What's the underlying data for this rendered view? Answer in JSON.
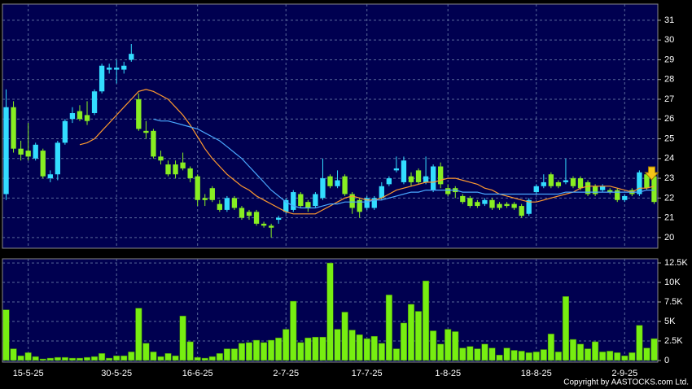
{
  "chart_data": [
    {
      "type": "candlestick",
      "grid": true,
      "up_color": "#33ddff",
      "down_color": "#88ee22",
      "ylim": [
        19.46,
        31.82
      ],
      "yticks": [
        20,
        21,
        22,
        23,
        24,
        25,
        26,
        27,
        28,
        29,
        30,
        31
      ],
      "open": [
        22.2,
        26.6,
        24.5,
        24.4,
        24.0,
        24.4,
        23.0,
        23.2,
        24.8,
        26.0,
        26.4,
        26.2,
        26.3,
        27.4,
        28.5,
        28.5,
        28.5,
        29.0,
        27.0,
        25.4,
        25.4,
        24.1,
        23.7,
        23.7,
        23.8,
        23.5,
        23.1,
        22.0,
        22.5,
        21.7,
        21.4,
        22.0,
        21.5,
        21.3,
        21.3,
        20.7,
        20.6,
        20.9,
        21.3,
        21.4,
        22.2,
        21.8,
        21.6,
        22.0,
        23.1,
        22.6,
        23.1,
        22.2,
        21.9,
        21.5,
        21.5,
        22.0,
        22.7,
        23.4,
        22.8,
        23.1,
        23.4,
        22.8,
        22.4,
        23.6,
        22.5,
        22.5,
        22.1,
        22.0,
        21.8,
        21.7,
        21.9,
        21.7,
        21.7,
        21.7,
        21.6,
        21.2,
        22.3,
        22.6,
        23.2,
        22.8,
        22.8,
        23.0,
        23.0,
        22.8,
        22.6,
        22.4,
        22.4,
        22.4,
        21.9,
        22.4,
        22.2,
        23.2,
        23.1
      ],
      "high": [
        27.5,
        26.9,
        24.9,
        25.8,
        24.8,
        24.5,
        23.4,
        24.9,
        26.0,
        26.6,
        26.7,
        26.9,
        27.5,
        28.8,
        28.8,
        29.0,
        28.9,
        29.8,
        27.3,
        25.9,
        25.5,
        24.4,
        23.9,
        23.9,
        24.3,
        23.6,
        23.2,
        22.2,
        22.6,
        21.9,
        22.1,
        22.1,
        21.6,
        21.4,
        21.4,
        20.8,
        20.7,
        21.1,
        22.0,
        22.4,
        22.3,
        21.9,
        22.3,
        24.0,
        23.2,
        23.4,
        23.2,
        22.3,
        22.0,
        22.1,
        22.1,
        22.8,
        23.1,
        24.1,
        24.1,
        23.3,
        23.5,
        24.1,
        23.7,
        23.8,
        22.7,
        22.6,
        22.2,
        22.1,
        21.9,
        22.0,
        22.0,
        21.8,
        21.8,
        21.8,
        21.7,
        22.0,
        22.7,
        23.2,
        23.3,
        22.9,
        24.0,
        23.1,
        23.1,
        22.9,
        22.7,
        22.7,
        22.5,
        22.5,
        22.2,
        22.5,
        23.4,
        23.3,
        23.2
      ],
      "low": [
        21.9,
        24.3,
        23.9,
        23.9,
        23.9,
        23.0,
        22.8,
        22.9,
        24.7,
        25.8,
        25.9,
        25.7,
        26.2,
        27.3,
        28.3,
        27.8,
        28.3,
        28.9,
        25.4,
        25.0,
        24.0,
        23.7,
        23.1,
        23.0,
        23.4,
        22.8,
        21.6,
        21.6,
        21.8,
        21.3,
        21.3,
        21.4,
        20.9,
        20.9,
        20.6,
        20.5,
        20.0,
        20.7,
        21.2,
        21.3,
        21.5,
        21.3,
        21.5,
        21.9,
        22.5,
        22.5,
        22.1,
        21.2,
        21.0,
        21.4,
        21.4,
        21.9,
        22.6,
        23.3,
        22.7,
        22.6,
        22.7,
        22.7,
        22.3,
        22.5,
        22.1,
        22.0,
        21.7,
        21.5,
        21.5,
        21.6,
        21.4,
        21.4,
        21.5,
        21.4,
        21.0,
        21.1,
        22.2,
        22.5,
        22.5,
        22.5,
        22.7,
        22.5,
        22.4,
        22.1,
        22.1,
        22.3,
        22.2,
        21.8,
        21.8,
        22.1,
        22.1,
        22.4,
        21.7
      ],
      "close": [
        26.6,
        24.5,
        24.2,
        24.1,
        24.7,
        23.1,
        23.2,
        24.8,
        25.9,
        26.3,
        26.0,
        25.9,
        27.4,
        28.7,
        28.6,
        28.6,
        28.7,
        29.3,
        25.5,
        25.3,
        24.1,
        23.9,
        23.2,
        23.2,
        23.5,
        23.0,
        21.9,
        21.9,
        21.9,
        21.4,
        22.0,
        21.5,
        21.0,
        21.1,
        20.7,
        20.6,
        20.5,
        21.0,
        21.9,
        22.3,
        21.6,
        21.5,
        22.2,
        23.0,
        22.6,
        22.9,
        22.2,
        21.5,
        21.3,
        22.0,
        22.0,
        22.6,
        23.0,
        23.5,
        23.9,
        22.8,
        22.8,
        23.1,
        23.6,
        22.7,
        22.2,
        22.3,
        21.8,
        21.6,
        21.6,
        21.9,
        21.5,
        21.5,
        21.6,
        21.5,
        21.1,
        21.9,
        22.6,
        22.8,
        22.6,
        22.6,
        22.9,
        22.6,
        22.5,
        22.2,
        22.2,
        22.6,
        22.3,
        21.9,
        22.1,
        22.2,
        23.3,
        22.5,
        21.8
      ],
      "series": [
        {
          "color": "#ff9a2e",
          "values": [
            null,
            null,
            null,
            null,
            null,
            null,
            null,
            null,
            null,
            null,
            24.7,
            24.8,
            25.0,
            25.4,
            25.8,
            26.2,
            26.6,
            27.0,
            27.4,
            27.5,
            27.4,
            27.2,
            27.0,
            26.6,
            26.2,
            25.7,
            25.1,
            24.5,
            24.0,
            23.6,
            23.2,
            22.9,
            22.6,
            22.4,
            22.1,
            21.9,
            21.7,
            21.5,
            21.3,
            21.2,
            21.2,
            21.2,
            21.2,
            21.4,
            21.6,
            21.8,
            22.0,
            22.1,
            22.0,
            21.9,
            21.9,
            22.0,
            22.2,
            22.4,
            22.5,
            22.6,
            22.7,
            22.8,
            22.8,
            22.9,
            23.0,
            23.0,
            22.9,
            22.8,
            22.7,
            22.5,
            22.4,
            22.2,
            22.1,
            22.0,
            21.9,
            21.8,
            21.8,
            21.9,
            22.0,
            22.1,
            22.2,
            22.3,
            22.5,
            22.6,
            22.6,
            22.6,
            22.6,
            22.5,
            22.4,
            22.3,
            22.5,
            22.5,
            22.6
          ]
        },
        {
          "color": "#4aa8ff",
          "values": [
            null,
            null,
            null,
            null,
            null,
            null,
            null,
            null,
            null,
            null,
            null,
            null,
            null,
            null,
            null,
            null,
            null,
            null,
            null,
            null,
            26.0,
            25.9,
            25.9,
            25.8,
            25.7,
            25.6,
            25.5,
            25.3,
            25.1,
            24.9,
            24.6,
            24.3,
            24.0,
            23.6,
            23.2,
            22.8,
            22.4,
            22.1,
            21.8,
            21.6,
            21.5,
            21.5,
            21.5,
            21.6,
            21.7,
            21.7,
            21.8,
            21.8,
            21.8,
            21.8,
            21.9,
            21.9,
            22.0,
            22.1,
            22.2,
            22.3,
            22.3,
            22.4,
            22.4,
            22.4,
            22.4,
            22.4,
            22.3,
            22.3,
            22.3,
            22.2,
            22.2,
            22.2,
            22.2,
            22.2,
            22.2,
            22.2,
            22.2,
            22.2,
            22.2,
            22.2,
            22.3,
            22.3,
            22.3,
            22.3,
            22.3,
            22.3,
            22.3,
            22.3,
            22.3,
            22.3,
            22.3,
            22.4,
            22.4
          ]
        }
      ]
    },
    {
      "type": "bar",
      "grid": true,
      "color": "#77ee11",
      "ylim": [
        -214,
        13030
      ],
      "yticks": [
        0,
        {
          "value": 2500,
          "label": "2.5K"
        },
        {
          "value": 5000,
          "label": "5K"
        },
        {
          "value": 7500,
          "label": "7.5K"
        },
        {
          "value": 10000,
          "label": "10K"
        },
        {
          "value": 12500,
          "label": "12.5K"
        }
      ],
      "categories": [
        null,
        null,
        null,
        "15-5-25",
        null,
        null,
        null,
        null,
        null,
        null,
        null,
        null,
        null,
        null,
        null,
        "30-5-25",
        null,
        null,
        null,
        null,
        null,
        null,
        null,
        null,
        null,
        null,
        "16-6-25",
        null,
        null,
        null,
        null,
        null,
        null,
        null,
        null,
        null,
        null,
        null,
        "2-7-25",
        null,
        null,
        null,
        null,
        null,
        null,
        null,
        null,
        null,
        null,
        "17-7-25",
        null,
        null,
        null,
        null,
        null,
        null,
        null,
        null,
        null,
        null,
        "1-8-25",
        null,
        null,
        null,
        null,
        null,
        null,
        null,
        null,
        null,
        null,
        null,
        "18-8-25",
        null,
        null,
        null,
        null,
        null,
        null,
        null,
        null,
        null,
        null,
        null,
        "2-9-25",
        null,
        null,
        null,
        null
      ],
      "values": [
        6500,
        1500,
        600,
        1000,
        500,
        200,
        300,
        400,
        400,
        300,
        300,
        400,
        500,
        900,
        300,
        600,
        600,
        1100,
        6700,
        2200,
        1100,
        500,
        900,
        600,
        5700,
        2400,
        400,
        300,
        500,
        900,
        1500,
        1500,
        2200,
        2300,
        2600,
        2300,
        2600,
        2900,
        4000,
        7600,
        2300,
        2900,
        3000,
        3000,
        12500,
        4000,
        6200,
        3900,
        3300,
        2800,
        3100,
        2200,
        8400,
        1500,
        4800,
        7200,
        6300,
        10200,
        3800,
        2100,
        4000,
        3700,
        1600,
        1800,
        1500,
        2100,
        1600,
        700,
        1600,
        1300,
        1200,
        1000,
        1100,
        1400,
        3400,
        1100,
        8200,
        2700,
        2100,
        1500,
        2400,
        1100,
        1200,
        1000,
        600,
        1000,
        4500,
        1600,
        2800
      ]
    }
  ],
  "footer": "Copyright by AASTOCKS.com Ltd."
}
